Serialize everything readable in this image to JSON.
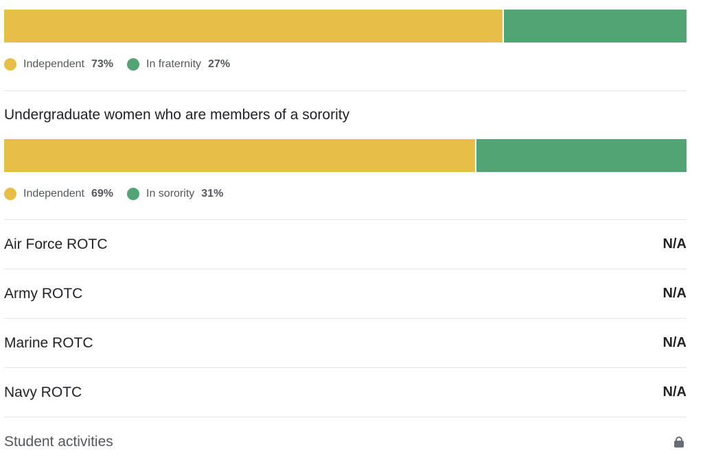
{
  "fraternity": {
    "segments": [
      {
        "label": "Independent",
        "percent_label": "73%",
        "value": 73,
        "color": "#e7be48"
      },
      {
        "label": "In fraternity",
        "percent_label": "27%",
        "value": 27,
        "color": "#52a474"
      }
    ]
  },
  "sorority": {
    "title": "Undergraduate women who are members of a sorority",
    "segments": [
      {
        "label": "Independent",
        "percent_label": "69%",
        "value": 69,
        "color": "#e7be48"
      },
      {
        "label": "In sorority",
        "percent_label": "31%",
        "value": 31,
        "color": "#52a474"
      }
    ]
  },
  "rotc": [
    {
      "label": "Air Force ROTC",
      "value": "N/A"
    },
    {
      "label": "Army ROTC",
      "value": "N/A"
    },
    {
      "label": "Marine ROTC",
      "value": "N/A"
    },
    {
      "label": "Navy ROTC",
      "value": "N/A"
    }
  ],
  "student_activities": {
    "label": "Student activities",
    "icon": "lock-icon"
  }
}
